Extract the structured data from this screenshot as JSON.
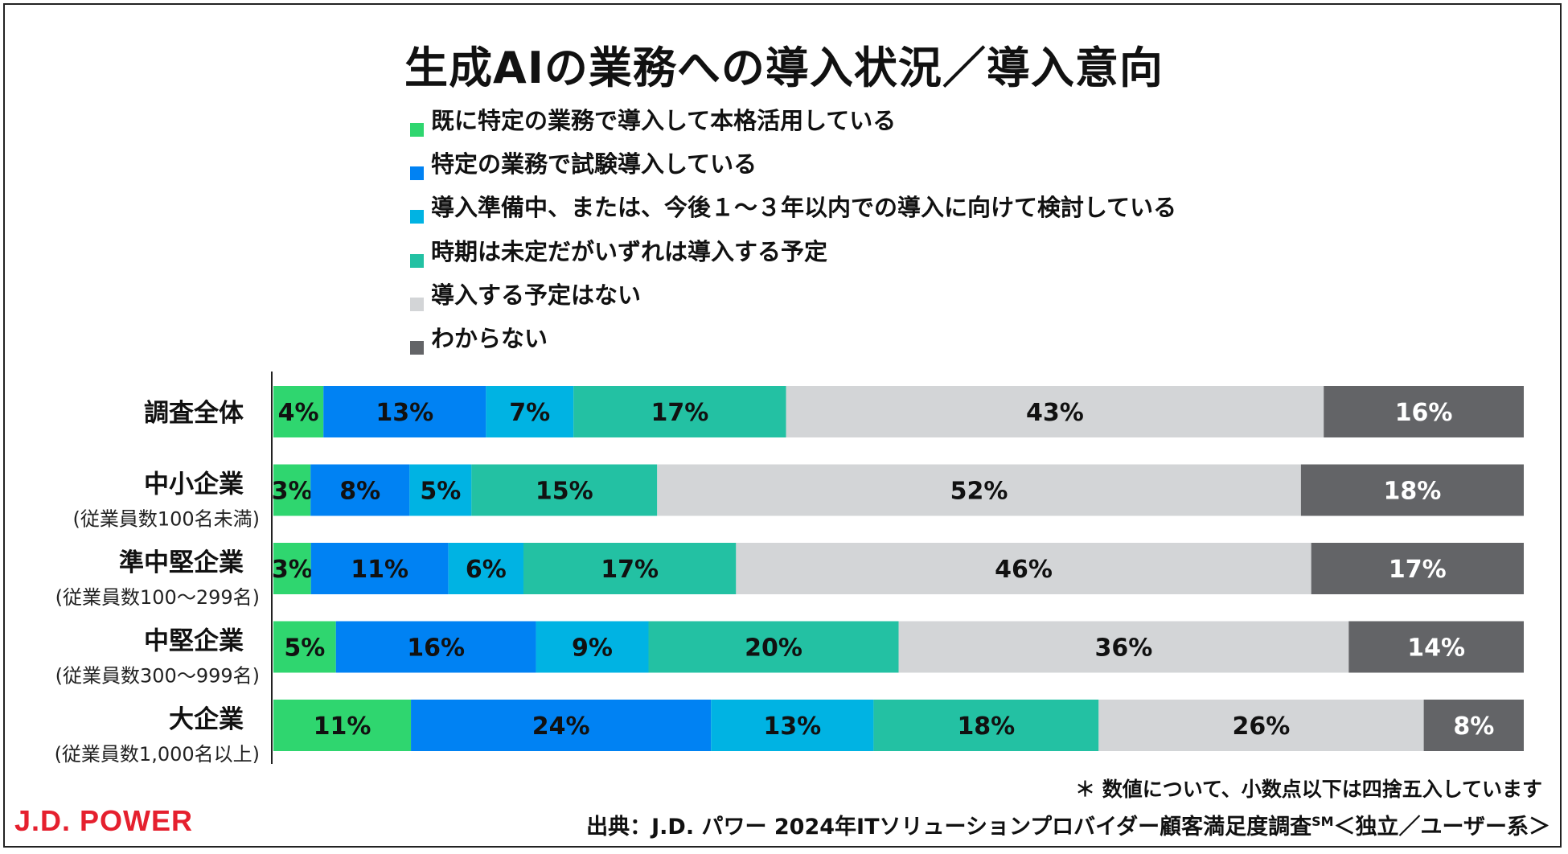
{
  "footer": {
    "note": "＊ 数値について、小数点以下は四捨五入しています",
    "logo": "J.D. POWER",
    "source_prefix": "出典：J.D. パワー 2024年ITソリューションプロバイダー顧客満足度調査",
    "source_superscript": "SM",
    "source_suffix": "＜独立／ユーザー系＞"
  },
  "colors": {
    "c1": "#2fd66f",
    "c2": "#0082f3",
    "c3": "#00b3e3",
    "c4": "#23c1a3",
    "c5": "#d3d5d7",
    "c6": "#636467"
  },
  "chart_data": {
    "type": "bar",
    "orientation": "horizontal",
    "stacked": true,
    "title": "生成AIの業務への導入状況／導入意向",
    "legend_position": "top",
    "x_range": [
      0,
      100
    ],
    "categories": [
      {
        "label": "調査全体",
        "sublabel": ""
      },
      {
        "label": "中小企業",
        "sublabel": "(従業員数100名未満)"
      },
      {
        "label": "準中堅企業",
        "sublabel": "(従業員数100～299名)"
      },
      {
        "label": "中堅企業",
        "sublabel": "(従業員数300～999名)"
      },
      {
        "label": "大企業",
        "sublabel": "(従業員数1,000名以上)"
      }
    ],
    "series": [
      {
        "name": "既に特定の業務で導入して本格活用している",
        "values": [
          4,
          3,
          3,
          5,
          11
        ],
        "labels": [
          "4%",
          "3%",
          "3%",
          "5%",
          "11%"
        ]
      },
      {
        "name": "特定の業務で試験導入している",
        "values": [
          13,
          8,
          11,
          16,
          24
        ],
        "labels": [
          "13%",
          "8%",
          "11%",
          "16%",
          "24%"
        ]
      },
      {
        "name": "導入準備中、または、今後１～３年以内での導入に向けて検討している",
        "values": [
          7,
          5,
          6,
          9,
          13
        ],
        "labels": [
          "7%",
          "5%",
          "6%",
          "9%",
          "13%"
        ]
      },
      {
        "name": "時期は未定だがいずれは導入する予定",
        "values": [
          17,
          15,
          17,
          20,
          18
        ],
        "labels": [
          "17%",
          "15%",
          "17%",
          "20%",
          "18%"
        ]
      },
      {
        "name": "導入する予定はない",
        "values": [
          43,
          52,
          46,
          36,
          26
        ],
        "labels": [
          "43%",
          "52%",
          "46%",
          "36%",
          "26%"
        ]
      },
      {
        "name": "わからない",
        "values": [
          16,
          18,
          17,
          14,
          8
        ],
        "labels": [
          "16%",
          "18%",
          "17%",
          "14%",
          "8%"
        ]
      }
    ]
  }
}
